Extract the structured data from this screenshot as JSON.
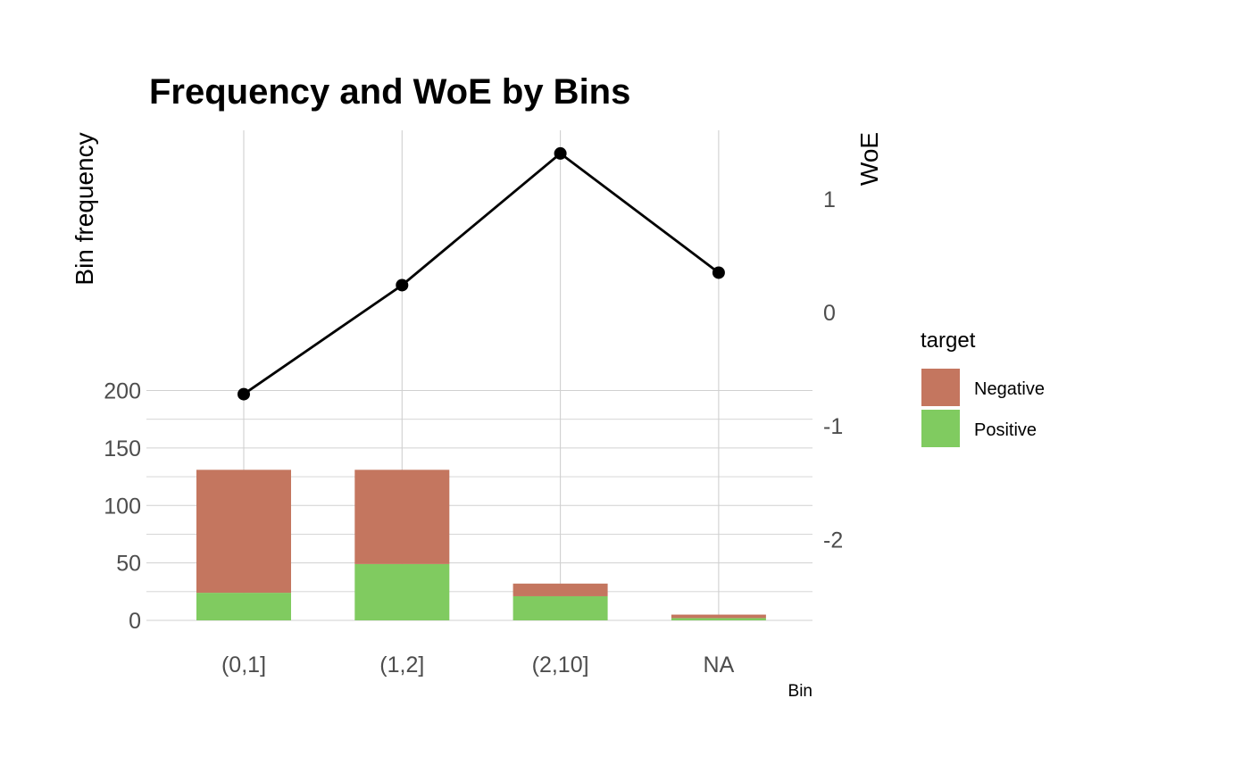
{
  "chart_data": {
    "type": "bar",
    "title": "Frequency and WoE by Bins",
    "xlabel": "Bin",
    "ylabel": "Bin frequency",
    "y2label": "WoE",
    "categories": [
      "(0,1]",
      "(1,2]",
      "(2,10]",
      "NA"
    ],
    "ylim": [
      0,
      210
    ],
    "yticks": [
      0,
      50,
      100,
      150,
      200
    ],
    "y2lim": [
      -2.7,
      1.45
    ],
    "y2ticks": [
      1,
      0,
      -1,
      -2
    ],
    "stacked": true,
    "series": [
      {
        "name": "Negative",
        "color": "#c4765f",
        "values": [
          107,
          82,
          11,
          3
        ]
      },
      {
        "name": "Positive",
        "color": "#80cb60",
        "values": [
          24,
          49,
          21,
          2
        ]
      }
    ],
    "line": {
      "name": "WoE",
      "color": "#000000",
      "values": [
        -0.72,
        0.24,
        1.4,
        0.35
      ]
    },
    "legend": {
      "title": "target",
      "placement": "right"
    },
    "grid": true
  }
}
